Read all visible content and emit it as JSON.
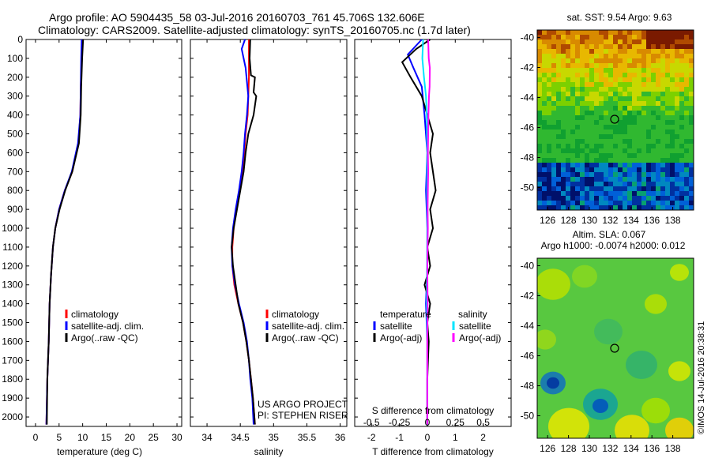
{
  "header": {
    "line1": "Argo profile: AO 5904435_58 03-Jul-2016 20160703_761 45.706S 132.606E",
    "line2": "Climatology: CARS2009. Satellite-adjusted climatology: synTS_20160705.nc (1.7d later)"
  },
  "colors": {
    "climatology": "#ff0000",
    "satellite": "#0000ff",
    "argo": "#000000",
    "sal_satellite": "#00e5ff",
    "sal_argo": "#ff00ff"
  },
  "credits": {
    "project": "US ARGO PROJECT",
    "pi": "PI: STEPHEN RISER",
    "imos": "©IMOS 14-Jul-2016 20:38:31"
  },
  "chart_data": [
    {
      "id": "temperature",
      "type": "line",
      "xlabel": "temperature (deg C)",
      "ylabel": "",
      "xlim": [
        -2,
        31
      ],
      "ylim": [
        2050,
        0
      ],
      "xticks": [
        0,
        5,
        10,
        15,
        20,
        25,
        30
      ],
      "yticks": [
        0,
        100,
        200,
        300,
        400,
        500,
        600,
        700,
        800,
        900,
        1000,
        1100,
        1200,
        1300,
        1400,
        1500,
        1600,
        1700,
        1800,
        1900,
        2000
      ],
      "legend": [
        "climatology",
        "satellite-adj. clim.",
        "Argo(..raw -QC)"
      ],
      "series": [
        {
          "name": "climatology",
          "color": "#ff0000",
          "points": [
            [
              10.0,
              0
            ],
            [
              9.8,
              100
            ],
            [
              9.6,
              250
            ],
            [
              9.5,
              400
            ],
            [
              9.1,
              550
            ],
            [
              7.8,
              700
            ],
            [
              6.2,
              800
            ],
            [
              5.0,
              900
            ],
            [
              4.2,
              1000
            ],
            [
              3.7,
              1100
            ],
            [
              3.3,
              1250
            ],
            [
              3.0,
              1400
            ],
            [
              2.8,
              1600
            ],
            [
              2.5,
              1800
            ],
            [
              2.3,
              2040
            ]
          ]
        },
        {
          "name": "satellite-adj. clim.",
          "color": "#0000ff",
          "points": [
            [
              9.8,
              0
            ],
            [
              9.7,
              100
            ],
            [
              9.6,
              250
            ],
            [
              9.5,
              400
            ],
            [
              9.0,
              550
            ],
            [
              7.7,
              700
            ],
            [
              6.2,
              800
            ],
            [
              5.0,
              900
            ],
            [
              4.2,
              1000
            ],
            [
              3.7,
              1100
            ],
            [
              3.3,
              1250
            ],
            [
              3.0,
              1400
            ],
            [
              2.8,
              1600
            ],
            [
              2.5,
              1800
            ],
            [
              2.3,
              2040
            ]
          ]
        },
        {
          "name": "Argo(..raw -QC)",
          "color": "#000000",
          "points": [
            [
              10.1,
              0
            ],
            [
              9.9,
              100
            ],
            [
              9.7,
              250
            ],
            [
              9.6,
              400
            ],
            [
              9.2,
              550
            ],
            [
              7.8,
              700
            ],
            [
              6.3,
              800
            ],
            [
              5.1,
              900
            ],
            [
              4.2,
              1000
            ],
            [
              3.7,
              1100
            ],
            [
              3.3,
              1250
            ],
            [
              3.0,
              1400
            ],
            [
              2.8,
              1600
            ],
            [
              2.5,
              1800
            ],
            [
              2.4,
              2040
            ]
          ]
        }
      ]
    },
    {
      "id": "salinity",
      "type": "line",
      "xlabel": "salinity",
      "ylabel": "",
      "xlim": [
        33.75,
        36.1
      ],
      "ylim": [
        2050,
        0
      ],
      "xticks": [
        34,
        34.5,
        35,
        35.5,
        36
      ],
      "xticklabels": [
        "34",
        "34.5",
        "35",
        "35.5",
        "36"
      ],
      "legend": [
        "climatology",
        "satellite-adj. clim.",
        "Argo(..raw -QC)"
      ],
      "series": [
        {
          "name": "climatology",
          "color": "#ff0000",
          "points": [
            [
              34.63,
              0
            ],
            [
              34.63,
              100
            ],
            [
              34.63,
              200
            ],
            [
              34.62,
              300
            ],
            [
              34.61,
              400
            ],
            [
              34.58,
              500
            ],
            [
              34.56,
              600
            ],
            [
              34.53,
              700
            ],
            [
              34.49,
              800
            ],
            [
              34.44,
              900
            ],
            [
              34.4,
              1000
            ],
            [
              34.38,
              1100
            ],
            [
              34.38,
              1200
            ],
            [
              34.41,
              1300
            ],
            [
              34.47,
              1400
            ],
            [
              34.54,
              1500
            ],
            [
              34.59,
              1600
            ],
            [
              34.63,
              1700
            ],
            [
              34.66,
              1800
            ],
            [
              34.69,
              1900
            ],
            [
              34.72,
              2040
            ]
          ]
        },
        {
          "name": "satellite-adj. clim.",
          "color": "#0000ff",
          "points": [
            [
              34.57,
              0
            ],
            [
              34.52,
              50
            ],
            [
              34.58,
              150
            ],
            [
              34.62,
              300
            ],
            [
              34.6,
              400
            ],
            [
              34.57,
              500
            ],
            [
              34.55,
              600
            ],
            [
              34.52,
              700
            ],
            [
              34.48,
              800
            ],
            [
              34.43,
              900
            ],
            [
              34.39,
              1000
            ],
            [
              34.37,
              1100
            ],
            [
              34.38,
              1200
            ],
            [
              34.42,
              1300
            ],
            [
              34.48,
              1400
            ],
            [
              34.55,
              1500
            ],
            [
              34.6,
              1600
            ],
            [
              34.63,
              1700
            ],
            [
              34.65,
              1800
            ],
            [
              34.68,
              1900
            ],
            [
              34.7,
              2040
            ]
          ]
        },
        {
          "name": "Argo(..raw -QC)",
          "color": "#000000",
          "points": [
            [
              34.65,
              0
            ],
            [
              34.64,
              100
            ],
            [
              34.66,
              190
            ],
            [
              34.72,
              200
            ],
            [
              34.7,
              280
            ],
            [
              34.74,
              300
            ],
            [
              34.7,
              400
            ],
            [
              34.62,
              500
            ],
            [
              34.58,
              600
            ],
            [
              34.55,
              700
            ],
            [
              34.5,
              800
            ],
            [
              34.45,
              900
            ],
            [
              34.4,
              1000
            ],
            [
              34.37,
              1100
            ],
            [
              34.39,
              1200
            ],
            [
              34.43,
              1300
            ],
            [
              34.47,
              1400
            ],
            [
              34.54,
              1500
            ],
            [
              34.59,
              1600
            ],
            [
              34.63,
              1700
            ],
            [
              34.66,
              1800
            ],
            [
              34.69,
              1900
            ],
            [
              34.72,
              2040
            ]
          ]
        }
      ]
    },
    {
      "id": "difference",
      "type": "line",
      "xlabel": "T difference from climatology",
      "xlabel2": "S difference from climatology",
      "xlim": [
        -2.6,
        3.0
      ],
      "xticks": [
        -2,
        -1,
        0,
        1,
        2
      ],
      "xticklabels": [
        "-2",
        "-1",
        "0",
        "1",
        "2"
      ],
      "xticks2_labels": [
        "-0.5",
        "-0.25",
        "0",
        "0.25",
        "0.5"
      ],
      "ylim": [
        2050,
        0
      ],
      "legend_headers": [
        "temperature",
        "salinity"
      ],
      "legend": [
        "satellite",
        "Argo(-adj)",
        "satellite",
        "Argo(-adj)"
      ],
      "series": [
        {
          "name": "T satellite",
          "color": "#0000ff",
          "points": [
            [
              -0.2,
              0
            ],
            [
              -0.7,
              80
            ],
            [
              -0.5,
              150
            ],
            [
              -0.2,
              250
            ],
            [
              -0.1,
              400
            ],
            [
              0.0,
              600
            ],
            [
              -0.05,
              800
            ],
            [
              0.0,
              1000
            ],
            [
              0.0,
              1200
            ],
            [
              -0.05,
              1400
            ],
            [
              0.0,
              1600
            ],
            [
              0.0,
              1800
            ],
            [
              0.0,
              2040
            ]
          ]
        },
        {
          "name": "T Argo(-adj)",
          "color": "#000000",
          "points": [
            [
              0.1,
              0
            ],
            [
              -0.4,
              50
            ],
            [
              -0.9,
              120
            ],
            [
              -0.6,
              200
            ],
            [
              -0.2,
              300
            ],
            [
              0.0,
              400
            ],
            [
              0.2,
              500
            ],
            [
              0.1,
              600
            ],
            [
              0.2,
              700
            ],
            [
              0.3,
              800
            ],
            [
              0.1,
              900
            ],
            [
              0.2,
              1000
            ],
            [
              0.0,
              1100
            ],
            [
              0.1,
              1200
            ],
            [
              -0.1,
              1300
            ],
            [
              0.1,
              1400
            ],
            [
              0.0,
              1500
            ],
            [
              0.05,
              1600
            ],
            [
              0.0,
              1800
            ],
            [
              0.0,
              2040
            ]
          ]
        },
        {
          "name": "S satellite",
          "color": "#00e5ff",
          "points": [
            [
              -0.15,
              0
            ],
            [
              -0.18,
              100
            ],
            [
              -0.12,
              200
            ],
            [
              -0.05,
              300
            ],
            [
              -0.02,
              400
            ],
            [
              0.0,
              600
            ],
            [
              -0.01,
              800
            ],
            [
              0.0,
              1000
            ],
            [
              -0.01,
              1200
            ],
            [
              -0.02,
              1400
            ],
            [
              0.0,
              1600
            ],
            [
              0.0,
              1800
            ],
            [
              0.0,
              2040
            ]
          ]
        },
        {
          "name": "S Argo(-adj)",
          "color": "#ff00ff",
          "points": [
            [
              0.03,
              0
            ],
            [
              0.05,
              100
            ],
            [
              0.09,
              150
            ],
            [
              0.08,
              250
            ],
            [
              0.06,
              300
            ],
            [
              0.04,
              400
            ],
            [
              0.03,
              500
            ],
            [
              0.02,
              600
            ],
            [
              0.03,
              700
            ],
            [
              0.02,
              800
            ],
            [
              0.01,
              900
            ],
            [
              0.02,
              1000
            ],
            [
              0.0,
              1200
            ],
            [
              0.01,
              1400
            ],
            [
              0.0,
              1600
            ],
            [
              0.0,
              1800
            ],
            [
              0.0,
              2040
            ]
          ]
        }
      ]
    },
    {
      "id": "sst-map",
      "type": "heatmap",
      "title": "sat. SST: 9.54  Argo: 9.63",
      "xlim": [
        125,
        140
      ],
      "ylim": [
        -51.5,
        -39.5
      ],
      "xticks": [
        126,
        128,
        130,
        132,
        134,
        136,
        138
      ],
      "yticks": [
        -40,
        -42,
        -44,
        -46,
        -48,
        -50
      ],
      "marker": [
        132.6,
        -45.7
      ]
    },
    {
      "id": "sla-map",
      "type": "heatmap",
      "title": "Altim. SLA: 0.067",
      "subtitle": "Argo h1000: -0.0074  h2000: 0.012",
      "xlim": [
        125,
        140
      ],
      "ylim": [
        -51.5,
        -39.5
      ],
      "xticks": [
        126,
        128,
        130,
        132,
        134,
        136,
        138
      ],
      "yticks": [
        -40,
        -42,
        -44,
        -46,
        -48,
        -50
      ],
      "marker": [
        132.6,
        -45.7
      ]
    }
  ]
}
